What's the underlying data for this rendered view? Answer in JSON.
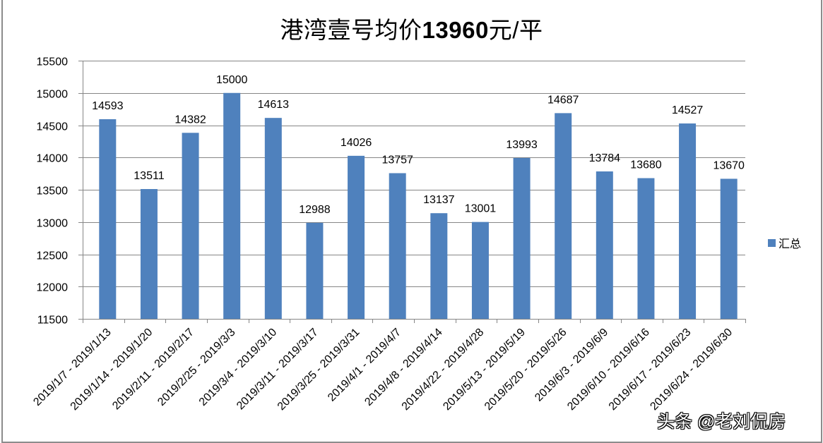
{
  "title": {
    "prefix": "港湾壹号均价",
    "number": "13960",
    "suffix": "元/平"
  },
  "legend": {
    "label": "汇总",
    "color": "#4f81bd"
  },
  "watermark": "头条 @老刘侃房",
  "chart_data": {
    "type": "bar",
    "title": "港湾壹号均价13960元/平",
    "xlabel": "",
    "ylabel": "",
    "ylim": [
      11500,
      15500
    ],
    "yticks": [
      11500,
      12000,
      12500,
      13000,
      13500,
      14000,
      14500,
      15000,
      15500
    ],
    "grid": true,
    "legend_position": "right",
    "categories": [
      "2019/1/7 - 2019/1/13",
      "2019/1/14 - 2019/1/20",
      "2019/2/11 - 2019/2/17",
      "2019/2/25 - 2019/3/3",
      "2019/3/4 - 2019/3/10",
      "2019/3/11 - 2019/3/17",
      "2019/3/25 - 2019/3/31",
      "2019/4/1 - 2019/4/7",
      "2019/4/8 - 2019/4/14",
      "2019/4/22 - 2019/4/28",
      "2019/5/13 - 2019/5/19",
      "2019/5/20 - 2019/5/26",
      "2019/6/3 - 2019/6/9",
      "2019/6/10 - 2019/6/16",
      "2019/6/17 - 2019/6/23",
      "2019/6/24 - 2019/6/30"
    ],
    "series": [
      {
        "name": "汇总",
        "color": "#4f81bd",
        "values": [
          14593,
          13511,
          14382,
          15000,
          14613,
          12988,
          14026,
          13757,
          13137,
          13001,
          13993,
          14687,
          13784,
          13680,
          14527,
          13670
        ]
      }
    ]
  }
}
